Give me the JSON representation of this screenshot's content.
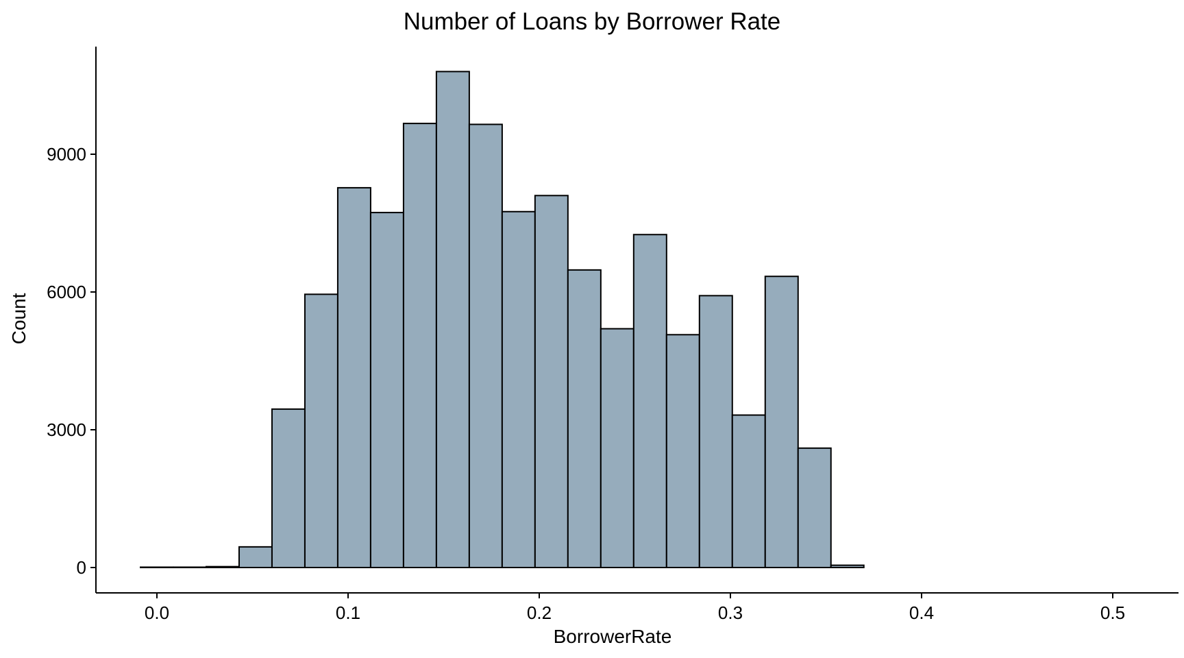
{
  "chart_data": {
    "type": "bar",
    "title": "Number of Loans by Borrower Rate",
    "xlabel": "BorrowerRate",
    "ylabel": "Count",
    "bin_width": 0.0172,
    "first_bin_left": -0.0086,
    "values": [
      8,
      8,
      20,
      450,
      3450,
      5950,
      8270,
      7730,
      9670,
      10800,
      9650,
      7750,
      8100,
      6480,
      5200,
      7250,
      5070,
      5920,
      3320,
      6340,
      2600,
      50,
      0,
      0,
      0,
      0,
      0,
      0,
      0,
      0
    ],
    "xlim": [
      -0.0086,
      0.5074
    ],
    "ylim": [
      0,
      11000
    ],
    "x_ticks": [
      0.0,
      0.1,
      0.2,
      0.3,
      0.4,
      0.5
    ],
    "x_tick_labels": [
      "0.0",
      "0.1",
      "0.2",
      "0.3",
      "0.4",
      "0.5"
    ],
    "y_ticks": [
      0,
      3000,
      6000,
      9000
    ],
    "y_tick_labels": [
      "0",
      "3000",
      "6000",
      "9000"
    ],
    "grid": false,
    "bar_fill": "#96acbc",
    "bar_stroke": "#000000"
  }
}
